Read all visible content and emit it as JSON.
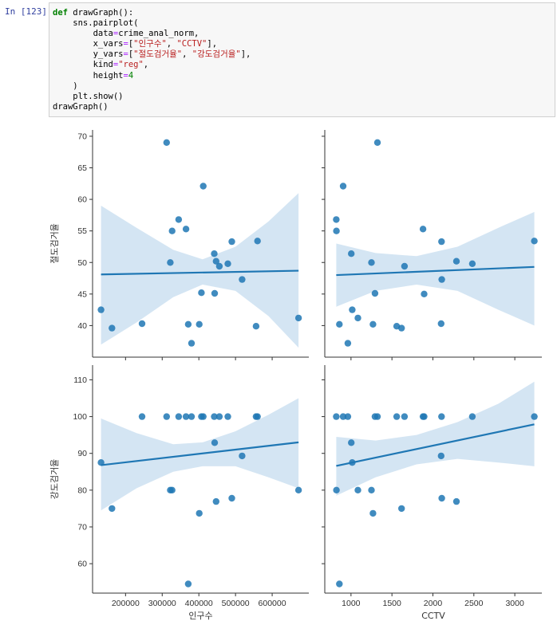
{
  "cell": {
    "prompt": "In [123]:",
    "code_lines": [
      [
        {
          "t": "def",
          "c": "kw"
        },
        {
          "t": " drawGraph():",
          "c": ""
        }
      ],
      [
        {
          "t": "    sns.pairplot(",
          "c": ""
        }
      ],
      [
        {
          "t": "        data",
          "c": ""
        },
        {
          "t": "=",
          "c": "op"
        },
        {
          "t": "crime_anal_norm,",
          "c": ""
        }
      ],
      [
        {
          "t": "        x_vars",
          "c": ""
        },
        {
          "t": "=",
          "c": "op"
        },
        {
          "t": "[",
          "c": ""
        },
        {
          "t": "\"인구수\"",
          "c": "str"
        },
        {
          "t": ", ",
          "c": ""
        },
        {
          "t": "\"CCTV\"",
          "c": "str"
        },
        {
          "t": "],",
          "c": ""
        }
      ],
      [
        {
          "t": "        y_vars",
          "c": ""
        },
        {
          "t": "=",
          "c": "op"
        },
        {
          "t": "[",
          "c": ""
        },
        {
          "t": "\"절도검거율\"",
          "c": "str"
        },
        {
          "t": ", ",
          "c": ""
        },
        {
          "t": "\"강도검거율\"",
          "c": "str"
        },
        {
          "t": "],",
          "c": ""
        }
      ],
      [
        {
          "t": "        kind",
          "c": ""
        },
        {
          "t": "=",
          "c": "op"
        },
        {
          "t": "\"reg\"",
          "c": "str"
        },
        {
          "t": ",",
          "c": ""
        }
      ],
      [
        {
          "t": "        height",
          "c": ""
        },
        {
          "t": "=",
          "c": "op"
        },
        {
          "t": "4",
          "c": "num"
        }
      ],
      [
        {
          "t": "    )",
          "c": ""
        }
      ],
      [
        {
          "t": "    plt.show()",
          "c": ""
        }
      ],
      [
        {
          "t": "drawGraph()",
          "c": ""
        }
      ]
    ]
  },
  "colors": {
    "point": "#1f77b4",
    "line": "#1f77b4",
    "band": "#c6dcef",
    "axis": "#333333",
    "text": "#333333"
  },
  "chart_data": {
    "type": "scatter",
    "x_vars": [
      "인구수",
      "CCTV"
    ],
    "y_vars": [
      "절도검거율",
      "강도검거율"
    ],
    "x_axes": [
      {
        "label": "인구수",
        "range": [
          110000,
          700000
        ],
        "ticks": [
          200000,
          300000,
          400000,
          500000,
          600000
        ],
        "tick_labels": [
          "200000",
          "300000",
          "400000",
          "500000",
          "600000"
        ]
      },
      {
        "label": "CCTV",
        "range": [
          680,
          3330
        ],
        "ticks": [
          1000,
          1500,
          2000,
          2500,
          3000
        ],
        "tick_labels": [
          "1000",
          "1500",
          "2000",
          "2500",
          "3000"
        ]
      }
    ],
    "y_axes": [
      {
        "label": "절도검거율",
        "range": [
          35,
          71
        ],
        "ticks": [
          40,
          45,
          50,
          55,
          60,
          65,
          70
        ],
        "tick_labels": [
          "40",
          "45",
          "50",
          "55",
          "60",
          "65",
          "70"
        ]
      },
      {
        "label": "강도검거율",
        "range": [
          52,
          114
        ],
        "ticks": [
          60,
          70,
          80,
          90,
          100,
          110
        ],
        "tick_labels": [
          "60",
          "70",
          "80",
          "90",
          "100",
          "110"
        ]
      }
    ],
    "panels": [
      {
        "name": "theft-vs-population",
        "x_var": "인구수",
        "y_var": "절도검거율",
        "points": [
          [
            133000,
            42.5
          ],
          [
            163000,
            39.6
          ],
          [
            245000,
            40.3
          ],
          [
            312000,
            69.0
          ],
          [
            322000,
            50.0
          ],
          [
            327000,
            55.0
          ],
          [
            345000,
            56.8
          ],
          [
            365000,
            55.3
          ],
          [
            371000,
            40.2
          ],
          [
            380000,
            37.2
          ],
          [
            401000,
            40.2
          ],
          [
            407000,
            45.2
          ],
          [
            412000,
            62.1
          ],
          [
            442000,
            51.4
          ],
          [
            443000,
            45.1
          ],
          [
            447000,
            50.2
          ],
          [
            456000,
            49.4
          ],
          [
            479000,
            49.8
          ],
          [
            490000,
            53.3
          ],
          [
            518000,
            47.3
          ],
          [
            556000,
            39.9
          ],
          [
            560000,
            53.4
          ],
          [
            672000,
            41.2
          ]
        ],
        "reg": {
          "x": [
            133000,
            672000
          ],
          "y": [
            48.1,
            48.7
          ]
        },
        "band": {
          "x": [
            133000,
            230000,
            330000,
            410000,
            500000,
            590000,
            672000
          ],
          "upper": [
            59.0,
            55.5,
            52.0,
            50.5,
            52.5,
            56.5,
            61.0
          ],
          "lower": [
            37.0,
            40.5,
            44.5,
            46.5,
            45.5,
            41.5,
            36.5
          ]
        }
      },
      {
        "name": "theft-vs-cctv",
        "x_var": "CCTV",
        "y_var": "절도검거율",
        "points": [
          [
            820,
            56.8
          ],
          [
            822,
            55.0
          ],
          [
            858,
            40.2
          ],
          [
            904,
            62.1
          ],
          [
            962,
            37.2
          ],
          [
            1003,
            51.4
          ],
          [
            1015,
            42.5
          ],
          [
            1084,
            41.2
          ],
          [
            1250,
            50.0
          ],
          [
            1268,
            40.2
          ],
          [
            1293,
            45.1
          ],
          [
            1323,
            69.0
          ],
          [
            1558,
            39.9
          ],
          [
            1617,
            39.6
          ],
          [
            1653,
            49.4
          ],
          [
            1879,
            55.3
          ],
          [
            1893,
            45.0
          ],
          [
            2105,
            53.3
          ],
          [
            2108,
            47.3
          ],
          [
            2100,
            40.3
          ],
          [
            2288,
            50.2
          ],
          [
            2481,
            49.8
          ],
          [
            3238,
            53.4
          ]
        ],
        "reg": {
          "x": [
            820,
            3238
          ],
          "y": [
            48.0,
            49.3
          ]
        },
        "band": {
          "x": [
            820,
            1300,
            1800,
            2300,
            2800,
            3238
          ],
          "upper": [
            53.0,
            51.5,
            51.0,
            52.5,
            55.5,
            58.0
          ],
          "lower": [
            43.0,
            45.5,
            46.5,
            45.5,
            42.5,
            40.0
          ]
        }
      },
      {
        "name": "robbery-vs-population",
        "x_var": "인구수",
        "y_var": "강도검거율",
        "points": [
          [
            133000,
            87.5
          ],
          [
            163000,
            75.0
          ],
          [
            245000,
            100
          ],
          [
            312000,
            100
          ],
          [
            322000,
            80
          ],
          [
            327000,
            80
          ],
          [
            345000,
            100
          ],
          [
            365000,
            100
          ],
          [
            371000,
            54.5
          ],
          [
            380000,
            100
          ],
          [
            401000,
            73.7
          ],
          [
            407000,
            100
          ],
          [
            412000,
            100
          ],
          [
            442000,
            100
          ],
          [
            443000,
            92.9
          ],
          [
            447000,
            76.9
          ],
          [
            456000,
            100
          ],
          [
            479000,
            100
          ],
          [
            490000,
            77.8
          ],
          [
            518000,
            89.3
          ],
          [
            556000,
            100
          ],
          [
            560000,
            100
          ],
          [
            672000,
            80.0
          ]
        ],
        "reg": {
          "x": [
            133000,
            672000
          ],
          "y": [
            86.8,
            93.0
          ]
        },
        "band": {
          "x": [
            133000,
            230000,
            330000,
            410000,
            500000,
            590000,
            672000
          ],
          "upper": [
            99.5,
            95.5,
            92.5,
            93.0,
            96.0,
            100.5,
            105.0
          ],
          "lower": [
            74.5,
            80.5,
            85.0,
            86.5,
            86.5,
            83.5,
            80.5
          ]
        }
      },
      {
        "name": "robbery-vs-cctv",
        "x_var": "CCTV",
        "y_var": "강도검거율",
        "points": [
          [
            820,
            100
          ],
          [
            822,
            80.0
          ],
          [
            858,
            54.5
          ],
          [
            904,
            100
          ],
          [
            962,
            100
          ],
          [
            1003,
            92.9
          ],
          [
            1015,
            87.5
          ],
          [
            1084,
            80.0
          ],
          [
            1250,
            80.0
          ],
          [
            1268,
            73.7
          ],
          [
            1293,
            100
          ],
          [
            1323,
            100
          ],
          [
            1558,
            100
          ],
          [
            1617,
            75.0
          ],
          [
            1653,
            100
          ],
          [
            1879,
            100
          ],
          [
            1893,
            100
          ],
          [
            2105,
            100
          ],
          [
            2108,
            77.8
          ],
          [
            2100,
            89.3
          ],
          [
            2288,
            76.9
          ],
          [
            2481,
            100
          ],
          [
            3238,
            100
          ]
        ],
        "reg": {
          "x": [
            820,
            3238
          ],
          "y": [
            86.6,
            97.9
          ]
        },
        "band": {
          "x": [
            820,
            1300,
            1800,
            2300,
            2800,
            3238
          ],
          "upper": [
            94.5,
            93.5,
            95.0,
            98.5,
            103.5,
            109.5
          ],
          "lower": [
            78.5,
            83.5,
            87.0,
            88.5,
            87.5,
            86.5
          ]
        }
      }
    ]
  }
}
